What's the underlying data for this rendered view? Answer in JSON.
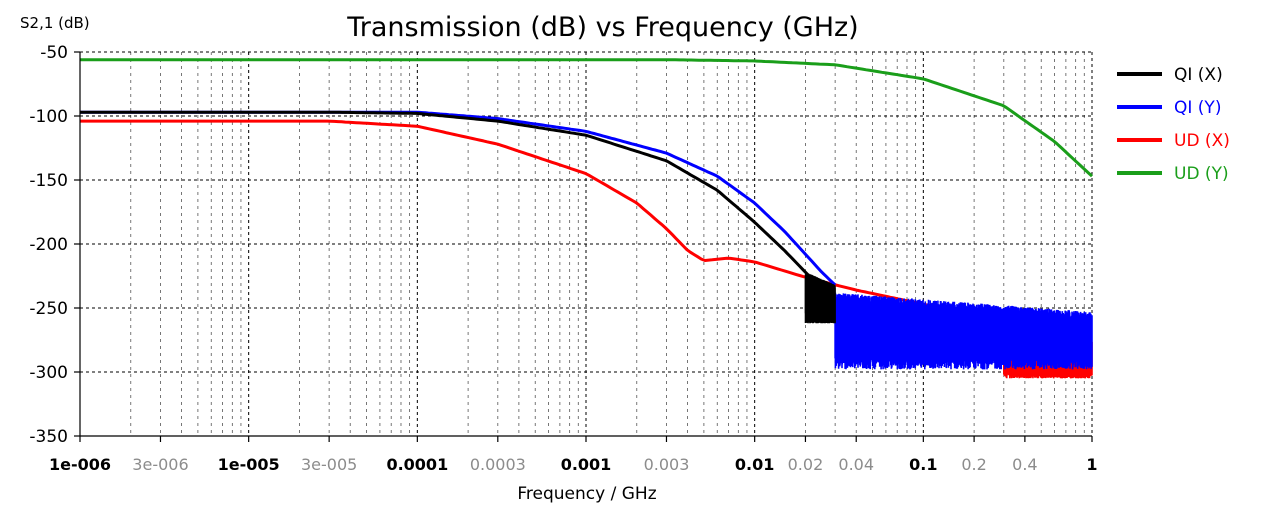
{
  "chart_data": {
    "type": "line",
    "title": "Transmission (dB) vs Frequency (GHz)",
    "ylabel": "S2,1 (dB)",
    "xlabel": "Frequency / GHz",
    "xscale": "log",
    "xlim": [
      1e-06,
      1
    ],
    "ylim": [
      -350,
      -50
    ],
    "grid": true,
    "legend_position": "top-right",
    "y_ticks": [
      {
        "value": -50,
        "label": "-50"
      },
      {
        "value": -100,
        "label": "-100"
      },
      {
        "value": -150,
        "label": "-150"
      },
      {
        "value": -200,
        "label": "-200"
      },
      {
        "value": -250,
        "label": "-250"
      },
      {
        "value": -300,
        "label": "-300"
      },
      {
        "value": -350,
        "label": "-350"
      }
    ],
    "x_ticks": [
      {
        "value": 1e-06,
        "label": "1e-006",
        "major": true
      },
      {
        "value": 3e-06,
        "label": "3e-006",
        "major": false
      },
      {
        "value": 1e-05,
        "label": "1e-005",
        "major": true
      },
      {
        "value": 3e-05,
        "label": "3e-005",
        "major": false
      },
      {
        "value": 0.0001,
        "label": "0.0001",
        "major": true
      },
      {
        "value": 0.0003,
        "label": "0.0003",
        "major": false
      },
      {
        "value": 0.001,
        "label": "0.001",
        "major": true
      },
      {
        "value": 0.003,
        "label": "0.003",
        "major": false
      },
      {
        "value": 0.01,
        "label": "0.01",
        "major": true
      },
      {
        "value": 0.02,
        "label": "0.02",
        "major": false
      },
      {
        "value": 0.04,
        "label": "0.04",
        "major": false
      },
      {
        "value": 0.1,
        "label": "0.1",
        "major": true
      },
      {
        "value": 0.2,
        "label": "0.2",
        "major": false
      },
      {
        "value": 0.4,
        "label": "0.4",
        "major": false
      },
      {
        "value": 1,
        "label": "1",
        "major": true
      }
    ],
    "series": [
      {
        "name": "QI (X)",
        "color": "#000000",
        "x": [
          1e-06,
          3e-05,
          0.0001,
          0.0003,
          0.001,
          0.003,
          0.006,
          0.01,
          0.015,
          0.02,
          0.025
        ],
        "y": [
          -97,
          -97,
          -98,
          -104,
          -115,
          -135,
          -158,
          -183,
          -205,
          -222,
          -235
        ],
        "noise": {
          "x": [
            0.02,
            0.03
          ],
          "low": -262,
          "high": -222
        }
      },
      {
        "name": "QI (Y)",
        "color": "#0000ff",
        "x": [
          1e-06,
          3e-05,
          0.0001,
          0.0003,
          0.001,
          0.003,
          0.006,
          0.01,
          0.015,
          0.02,
          0.025,
          0.03
        ],
        "y": [
          -97,
          -97,
          -97,
          -102,
          -112,
          -129,
          -147,
          -168,
          -190,
          -208,
          -222,
          -232
        ],
        "noise": {
          "x": [
            0.03,
            1
          ],
          "low": -298,
          "high": -238
        }
      },
      {
        "name": "UD (X)",
        "color": "#ff0000",
        "x": [
          1e-06,
          3e-05,
          0.0001,
          0.0003,
          0.001,
          0.002,
          0.003,
          0.004,
          0.005,
          0.007,
          0.01,
          0.02,
          0.04,
          0.1,
          0.2,
          0.4
        ],
        "y": [
          -104,
          -104,
          -108,
          -122,
          -145,
          -168,
          -188,
          -205,
          -213,
          -211,
          -214,
          -226,
          -236,
          -247,
          -257,
          -268
        ],
        "noise": {
          "x": [
            0.3,
            1
          ],
          "low": -305,
          "high": -262
        }
      },
      {
        "name": "UD (Y)",
        "color": "#1a9e1a",
        "x": [
          1e-06,
          0.0001,
          0.003,
          0.01,
          0.03,
          0.1,
          0.3,
          0.6,
          1
        ],
        "y": [
          -56,
          -56,
          -56,
          -57,
          -60,
          -71,
          -92,
          -120,
          -147
        ]
      }
    ]
  }
}
